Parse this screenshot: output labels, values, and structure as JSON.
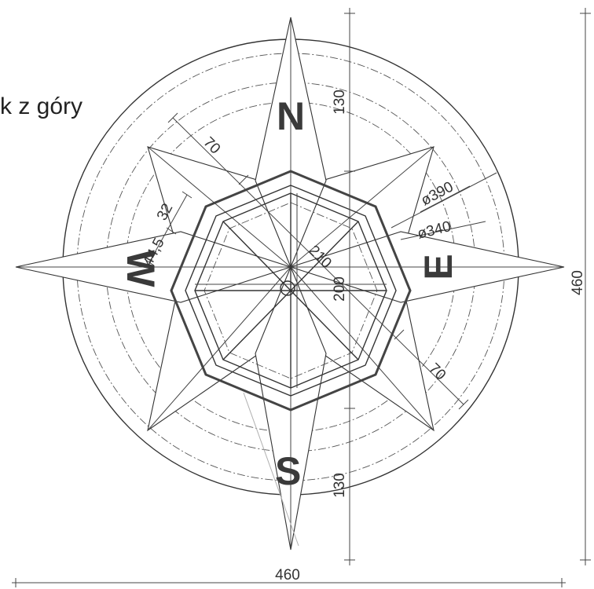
{
  "title": "k z góry",
  "directions": {
    "north": "N",
    "south": "S",
    "east": "E",
    "west": "W"
  },
  "dimensions": {
    "d390": "ø390",
    "d340": "ø340",
    "len70_top": "70",
    "len70_bottom": "70",
    "len32": "32",
    "len44_5": "44,5",
    "len210": "210",
    "len200": "200",
    "len130_top": "130",
    "len130_bottom": "130",
    "len460_right": "460",
    "len460_bottom": "460"
  }
}
